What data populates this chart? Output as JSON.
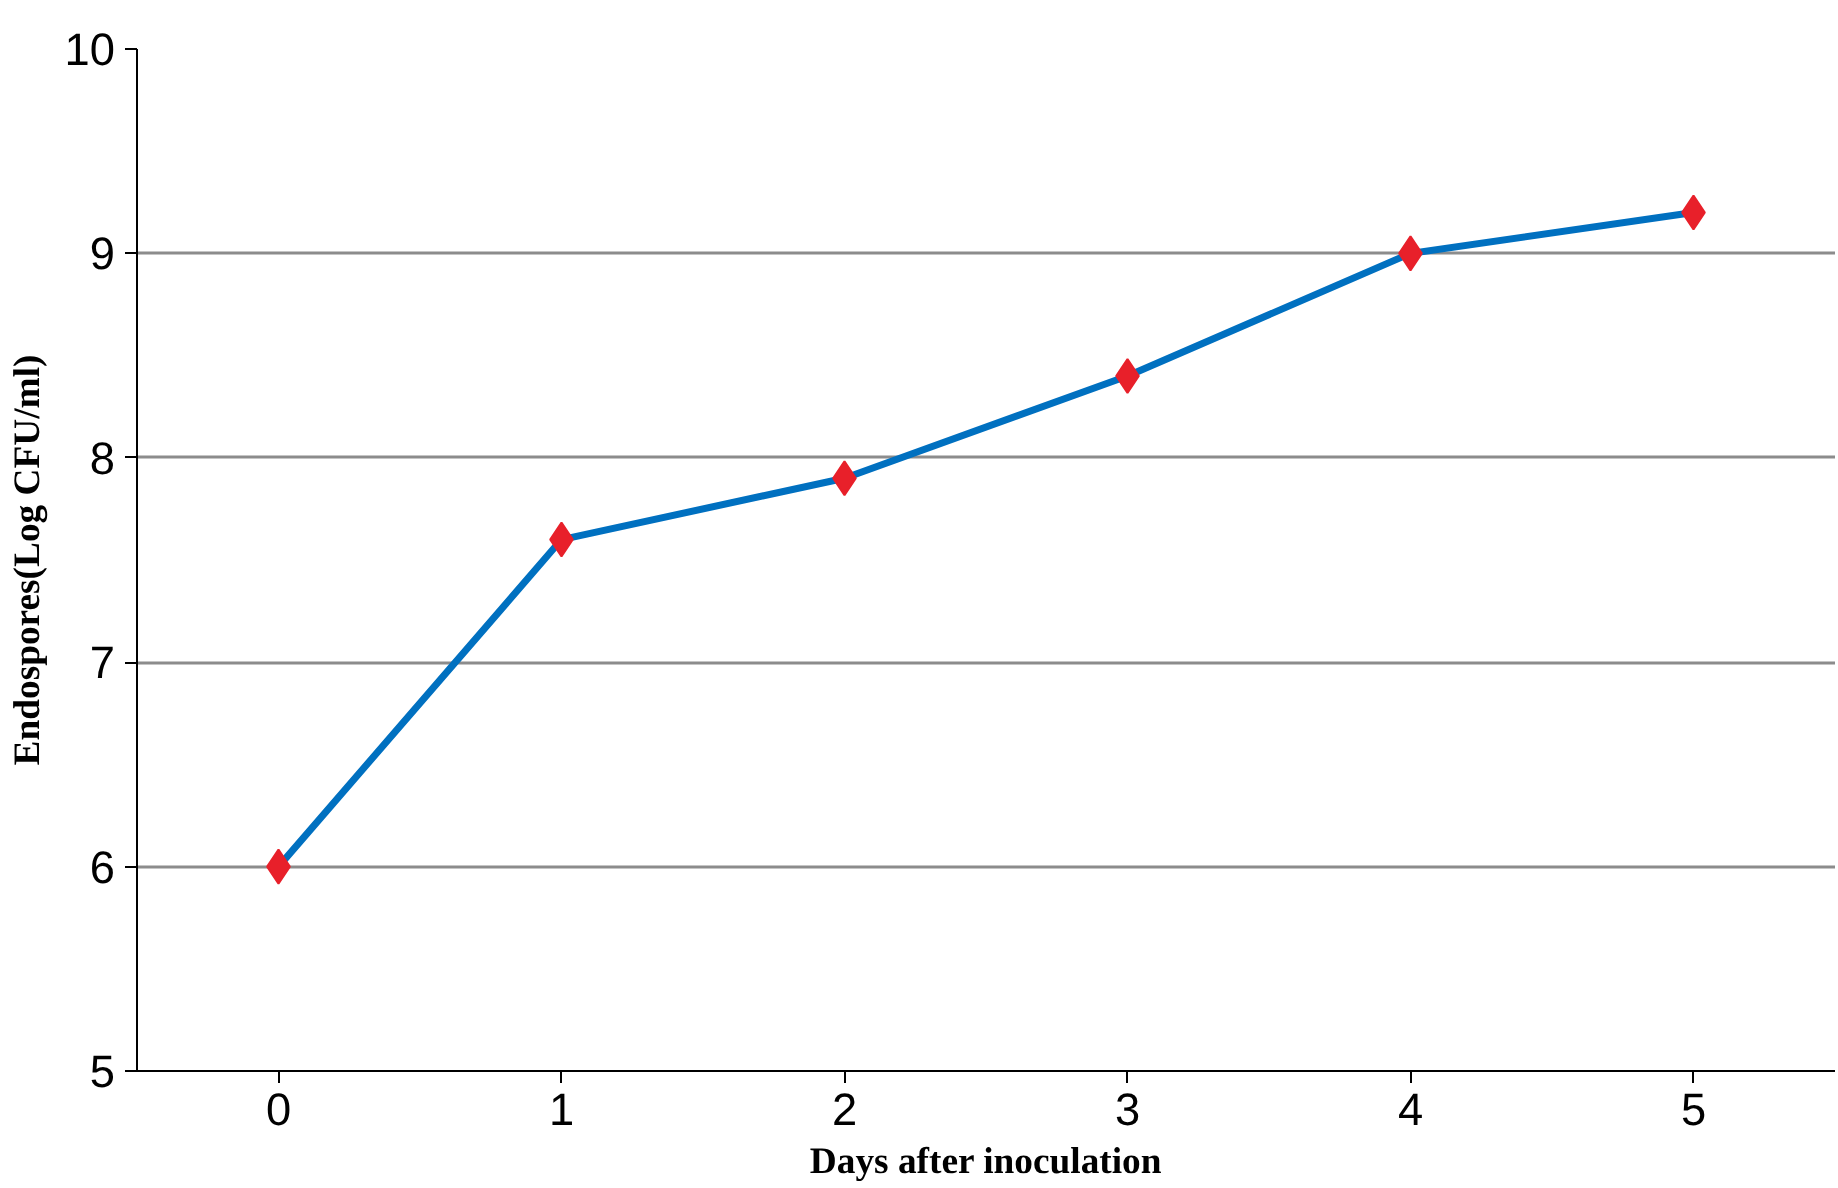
{
  "chart_data": {
    "type": "line",
    "xlabel": "Days after inoculation",
    "ylabel": "Endospores(Log CFU/ml)",
    "categories": [
      "0",
      "1",
      "2",
      "3",
      "4",
      "5"
    ],
    "series": [
      {
        "color": "#0070c0",
        "colors": [
          "#e8202a",
          "#e8202a",
          "#e8202a",
          "#e8202a",
          "#e8202a",
          "#e8202a"
        ],
        "values": [
          6,
          7.6,
          7.9,
          8.4,
          9.0,
          9.2
        ]
      }
    ],
    "marker": "diamond",
    "line_style": "solid",
    "ylim": [
      5,
      10
    ],
    "yticks": [
      5,
      6,
      7,
      8,
      9,
      10
    ],
    "grid": "y"
  }
}
